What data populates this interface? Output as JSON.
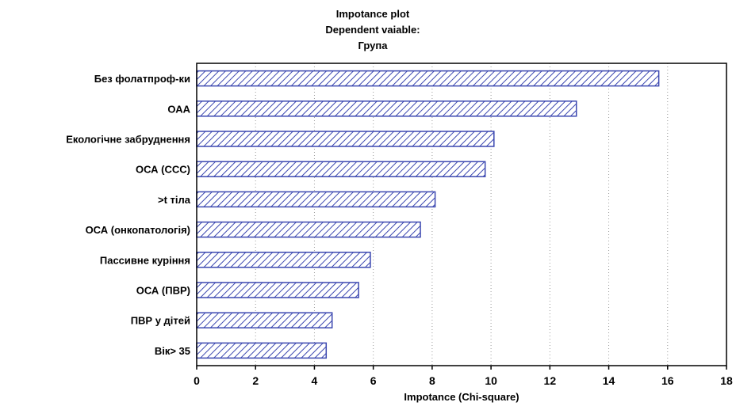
{
  "chart_data": {
    "type": "bar",
    "orientation": "horizontal",
    "title": [
      "Impotance plot",
      "Dependent vaiable:",
      "Група"
    ],
    "xlabel": "Impotance (Chi-square)",
    "ylabel": "",
    "xlim": [
      0,
      18
    ],
    "xticks": [
      0,
      2,
      4,
      6,
      8,
      10,
      12,
      14,
      16,
      18
    ],
    "grid": "vertical dotted",
    "categories": [
      "Без фолатпроф-ки",
      "ОАА",
      "Екологічне забруднення",
      "ОСА (ССС)",
      ">t тіла",
      "ОСА (онкопатологія)",
      "Пассивне куріння",
      "ОСА (ПВР)",
      "ПВР у дітей",
      "Вік> 35"
    ],
    "values": [
      15.7,
      12.9,
      10.1,
      9.8,
      8.1,
      7.6,
      5.9,
      5.5,
      4.6,
      4.4
    ],
    "bar_color": "#3b47b0",
    "bar_fill": "diagonal hatch"
  }
}
